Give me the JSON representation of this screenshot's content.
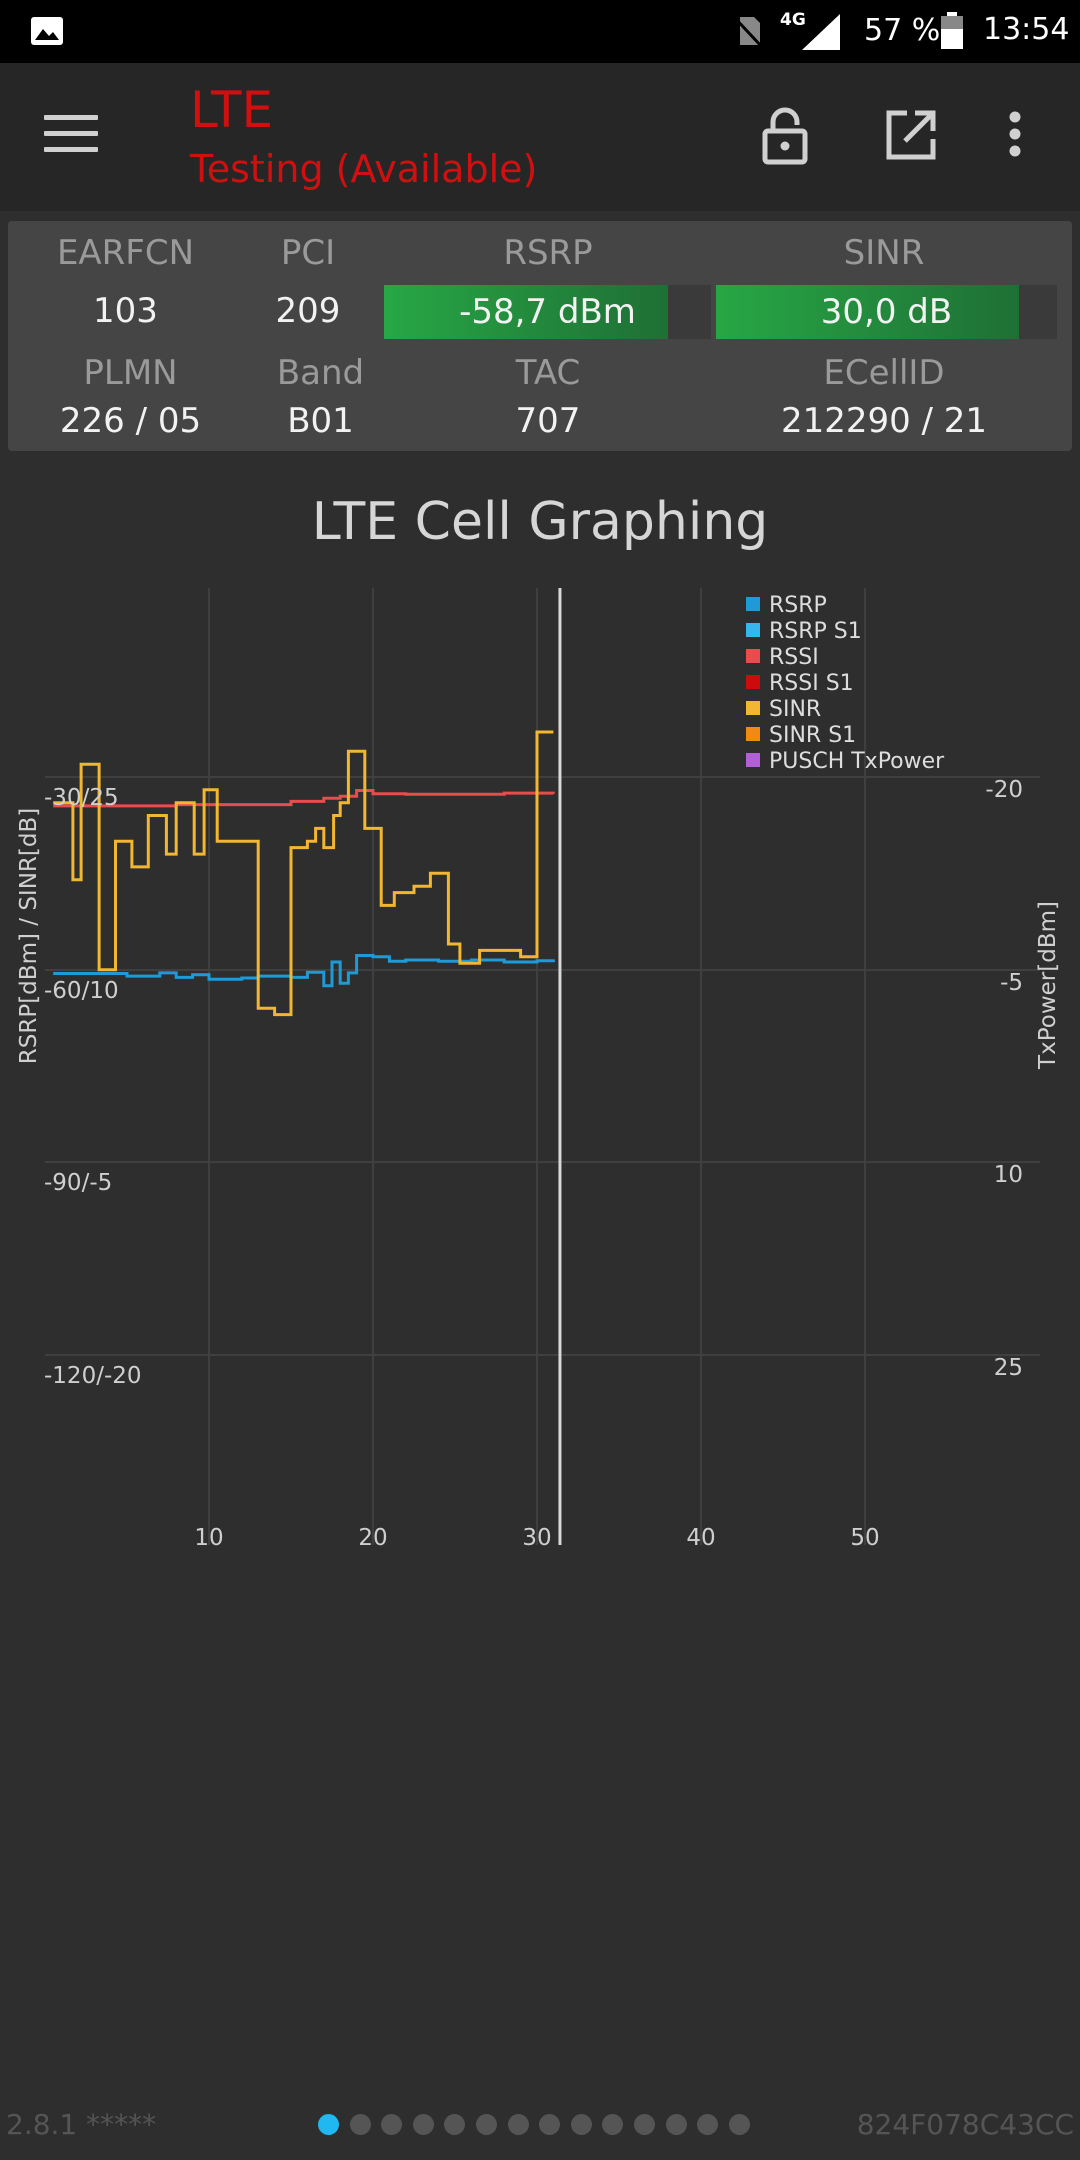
{
  "status_bar": {
    "network": "4G",
    "battery": "57 %",
    "time": "13:54",
    "icons": [
      "image-icon",
      "no-sim-icon",
      "signal-icon",
      "battery-icon"
    ]
  },
  "app_bar": {
    "title": "LTE",
    "subtitle": "Testing (Available)",
    "title_color": "#d01010",
    "icons": [
      "menu-icon",
      "lock-icon",
      "open-external-icon",
      "more-vert-icon"
    ]
  },
  "cell_info": {
    "earfcn_label": "EARFCN",
    "earfcn": "103",
    "pci_label": "PCI",
    "pci": "209",
    "rsrp_label": "RSRP",
    "rsrp": "-58,7 dBm",
    "rsrp_level": 0.87,
    "sinr_label": "SINR",
    "sinr": "30,0 dB",
    "sinr_level": 0.89,
    "plmn_label": "PLMN",
    "plmn": "226 / 05",
    "band_label": "Band",
    "band": "B01",
    "tac_label": "TAC",
    "tac": "707",
    "ecellid_label": "ECellID",
    "ecellid": "212290 / 21"
  },
  "chart": {
    "title": "LTE Cell Graphing"
  },
  "chart_data": {
    "type": "line",
    "title": "LTE Cell Graphing",
    "ylabel": "RSRP[dBm] / SINR[dB]",
    "ylabel_right": "TxPower[dBm]",
    "xlim": [
      0,
      60
    ],
    "x_ticks": [
      "10",
      "20",
      "30",
      "40",
      "50"
    ],
    "y_left_ticks": [
      "-30/25",
      "-60/10",
      "-90/-5",
      "-120/-20"
    ],
    "y_right_ticks": [
      "-20",
      "-5",
      "10",
      "25"
    ],
    "rsrp_range": [
      -120,
      -30
    ],
    "sinr_range": [
      -20,
      25
    ],
    "cursor_x": 31.4,
    "grid": true,
    "legend_position": "top-right",
    "legend": [
      "RSRP",
      "RSRP S1",
      "RSSI",
      "RSSI S1",
      "SINR",
      "SINR S1",
      "PUSCH TxPower"
    ],
    "series": [
      {
        "name": "RSRP",
        "color": "#1e9ad6",
        "axis": "rsrp",
        "x": [
          0.5,
          4,
          5,
          7,
          8,
          9,
          10,
          12,
          13,
          15,
          16,
          17,
          17.5,
          18,
          18.5,
          19,
          20,
          21,
          22,
          24,
          26,
          28,
          30,
          31
        ],
        "y": [
          -60.6,
          -60.6,
          -61,
          -60.5,
          -61.2,
          -60.8,
          -61.5,
          -61.3,
          -61,
          -61.2,
          -60.4,
          -62.5,
          -58.8,
          -62.1,
          -60.5,
          -57.8,
          -58,
          -58.7,
          -58.5,
          -58.7,
          -58.5,
          -58.8,
          -58.6,
          -58.4
        ]
      },
      {
        "name": "RSSI",
        "color": "#e84c4c",
        "axis": "rsrp",
        "x": [
          0.5,
          4,
          8,
          12,
          15,
          17,
          18,
          19,
          20,
          22,
          25,
          28,
          31
        ],
        "y": [
          -34.5,
          -34.5,
          -34.3,
          -34.3,
          -33.8,
          -33.3,
          -33,
          -32.1,
          -32.6,
          -32.7,
          -32.7,
          -32.5,
          -32.6
        ]
      },
      {
        "name": "SINR",
        "color": "#f2b630",
        "axis": "sinr",
        "x": [
          0.5,
          1.7,
          2.2,
          3.3,
          4.3,
          5.3,
          6.3,
          7.4,
          8,
          9.1,
          9.7,
          10.5,
          12,
          13,
          14,
          15,
          16,
          16.5,
          17,
          17.6,
          18,
          18.5,
          19.5,
          20.5,
          21.3,
          22.5,
          23.5,
          24.6,
          25.3,
          26.5,
          27,
          29,
          30,
          31
        ],
        "y": [
          23,
          17,
          26,
          10,
          20,
          18,
          22,
          19,
          23,
          19,
          24,
          20,
          20,
          7,
          6.5,
          19.5,
          20,
          21,
          19.5,
          22,
          23,
          27,
          21,
          15,
          16,
          16.5,
          17.5,
          12,
          10.5,
          11.5,
          11.5,
          11,
          28.5,
          28.5
        ]
      }
    ]
  },
  "footer": {
    "version": "2.8.1 *****",
    "device_id": "824F078C43CC",
    "page_count": 14,
    "current_page": 1
  }
}
